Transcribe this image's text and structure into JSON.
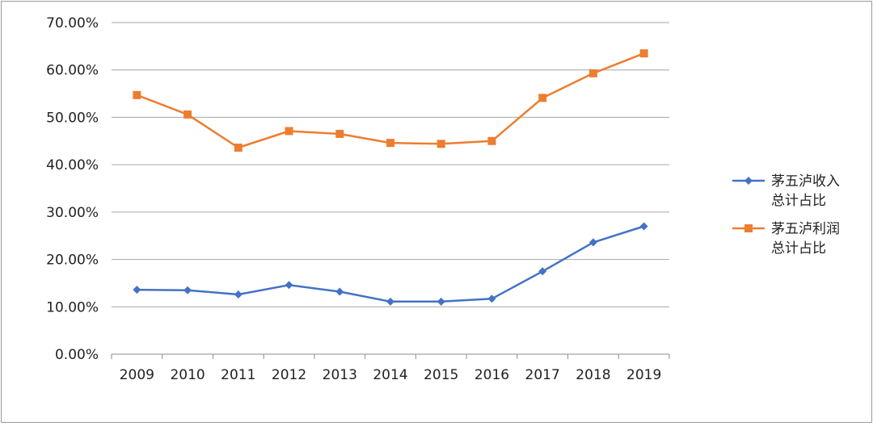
{
  "chart_data": {
    "type": "line",
    "title": "",
    "xlabel": "",
    "ylabel": "",
    "categories": [
      "2009",
      "2010",
      "2011",
      "2012",
      "2013",
      "2014",
      "2015",
      "2016",
      "2017",
      "2018",
      "2019"
    ],
    "ylim": [
      0,
      0.7
    ],
    "yticks": [
      "0.00%",
      "10.00%",
      "20.00%",
      "30.00%",
      "40.00%",
      "50.00%",
      "60.00%",
      "70.00%"
    ],
    "grid": true,
    "legend_position": "right",
    "series": [
      {
        "name_lines": [
          "茅五泸收入",
          "总计占比"
        ],
        "color": "#4472C4",
        "marker": "diamond",
        "values": [
          0.136,
          0.135,
          0.126,
          0.146,
          0.132,
          0.111,
          0.111,
          0.117,
          0.175,
          0.236,
          0.27
        ]
      },
      {
        "name_lines": [
          "茅五泸利润",
          "总计占比"
        ],
        "color": "#ED7D31",
        "marker": "square",
        "values": [
          0.547,
          0.506,
          0.436,
          0.471,
          0.465,
          0.446,
          0.444,
          0.45,
          0.541,
          0.593,
          0.635
        ]
      }
    ]
  }
}
